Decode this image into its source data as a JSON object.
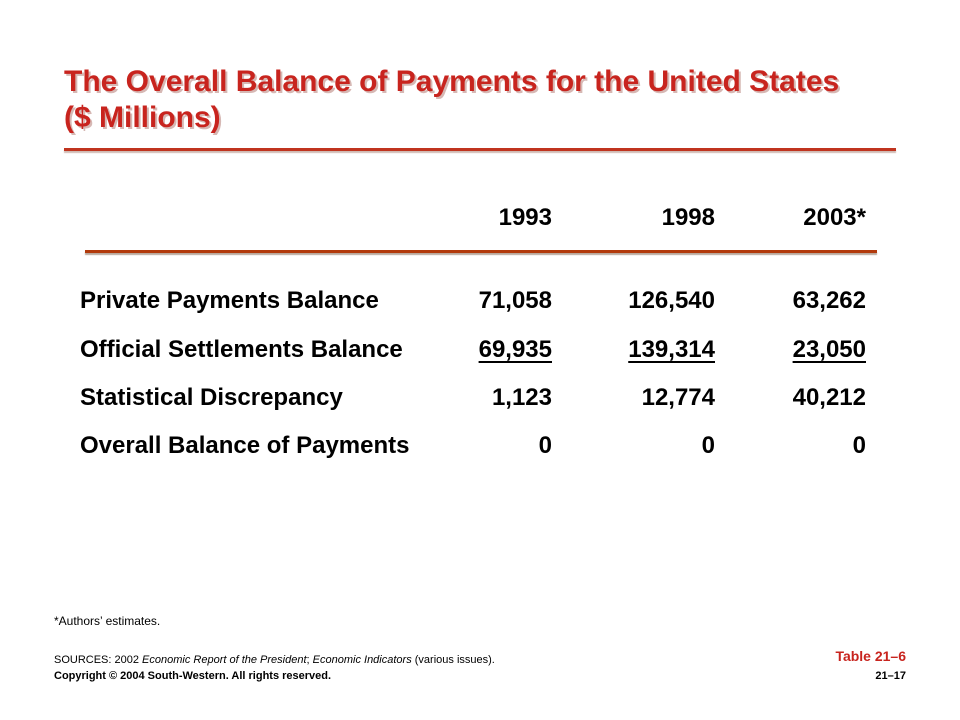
{
  "title": {
    "line1": "The Overall Balance of Payments for the United States",
    "line2": "($ Millions)"
  },
  "colors": {
    "title": "#c8241e",
    "rule": "#b23a0c"
  },
  "table": {
    "years": [
      "1993",
      "1998",
      "2003*"
    ],
    "rows": [
      {
        "label": "Private Payments Balance",
        "values": [
          "71,058",
          "126,540",
          "63,262"
        ]
      },
      {
        "label": "Official Settlements Balance",
        "values": [
          "69,935",
          "139,314",
          "23,050"
        ]
      },
      {
        "label": "Statistical Discrepancy",
        "values": [
          "1,123",
          "12,774",
          "40,212"
        ]
      },
      {
        "label": "Overall Balance of Payments",
        "values": [
          "0",
          "0",
          "0"
        ]
      }
    ]
  },
  "footer": {
    "footnote": "*Authors’ estimates.",
    "sources_prefix": "SOURCES: 2002 ",
    "sources_title1": "Economic Report of the President",
    "sources_sep": "; ",
    "sources_title2": "Economic Indicators",
    "sources_suffix": " (various issues).",
    "copyright": "Copyright © 2004 South-Western. All rights reserved.",
    "table_ref": "Table 21–6",
    "page": "21–17"
  }
}
